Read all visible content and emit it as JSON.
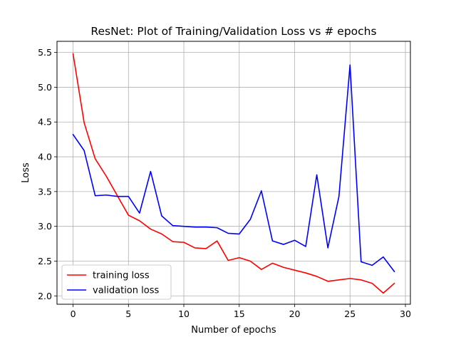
{
  "chart_data": {
    "type": "line",
    "title": "ResNet: Plot of Training/Validation Loss vs # epochs",
    "xlabel": "Number of epochs",
    "ylabel": "Loss",
    "xlim": [
      -1.45,
      30.45
    ],
    "ylim": [
      1.88,
      5.66
    ],
    "xticks": [
      0,
      5,
      10,
      15,
      20,
      25,
      30
    ],
    "yticks": [
      2.0,
      2.5,
      3.0,
      3.5,
      4.0,
      4.5,
      5.0,
      5.5
    ],
    "grid": true,
    "legend_position": "lower-left",
    "x": [
      0,
      1,
      2,
      3,
      4,
      5,
      6,
      7,
      8,
      9,
      10,
      11,
      12,
      13,
      14,
      15,
      16,
      17,
      18,
      19,
      20,
      21,
      22,
      23,
      24,
      25,
      26,
      27,
      28,
      29
    ],
    "series": [
      {
        "name": "training loss",
        "color": "#ff0000",
        "values": [
          5.48,
          4.49,
          3.97,
          3.72,
          3.44,
          3.16,
          3.08,
          2.96,
          2.89,
          2.78,
          2.77,
          2.69,
          2.68,
          2.79,
          2.51,
          2.55,
          2.5,
          2.38,
          2.47,
          2.41,
          2.37,
          2.33,
          2.28,
          2.21,
          2.23,
          2.25,
          2.23,
          2.18,
          2.04,
          2.18
        ]
      },
      {
        "name": "validation loss",
        "color": "#0000ff",
        "values": [
          4.32,
          4.09,
          3.44,
          3.45,
          3.43,
          3.43,
          3.19,
          3.79,
          3.15,
          3.01,
          3.0,
          2.99,
          2.99,
          2.98,
          2.9,
          2.89,
          3.1,
          3.51,
          2.79,
          2.74,
          2.8,
          2.71,
          3.74,
          2.69,
          3.43,
          5.32,
          2.49,
          2.44,
          2.56,
          2.35
        ]
      }
    ]
  }
}
